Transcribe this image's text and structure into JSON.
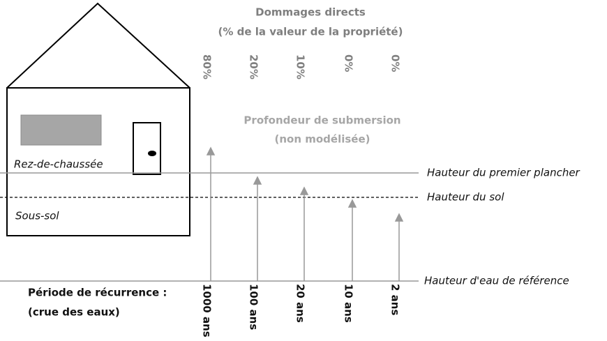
{
  "header": {
    "title": "Dommages directs",
    "subtitle": "(% de la valeur de la propriété)"
  },
  "damages": [
    "80%",
    "20%",
    "10%",
    "0%",
    "0%"
  ],
  "depth_note": {
    "title": "Profondeur de submersion",
    "subtitle": "(non modélisée)"
  },
  "house": {
    "ground_floor": "Rez-de-chaussée",
    "basement": "Sous-sol"
  },
  "levels": {
    "first_floor": "Hauteur du premier plancher",
    "ground": "Hauteur du sol",
    "reference": "Hauteur d'eau de référence"
  },
  "return_period": {
    "label": "Période de récurrence :",
    "sublabel": "(crue des eaux)",
    "values": [
      "1000 ans",
      "100 ans",
      "20 ans",
      "10 ans",
      "2 ans"
    ]
  }
}
